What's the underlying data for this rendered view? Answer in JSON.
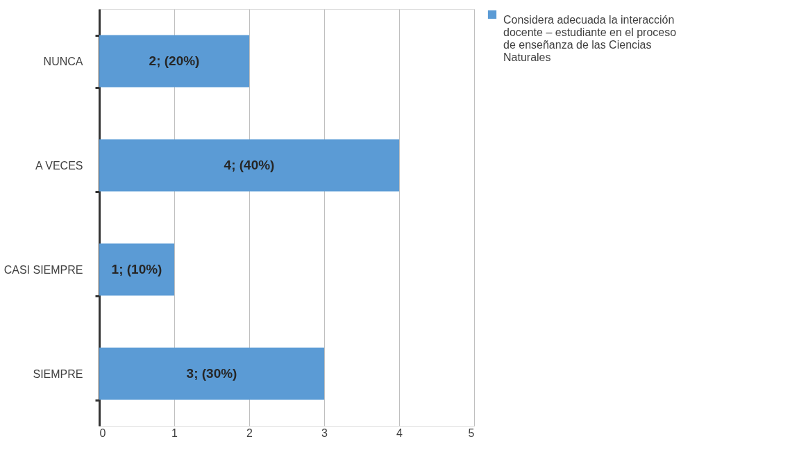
{
  "chart_data": {
    "type": "bar",
    "orientation": "horizontal",
    "categories": [
      "NUNCA",
      "A VECES",
      "CASI SIEMPRE",
      "SIEMPRE"
    ],
    "series": [
      {
        "name": "Considera adecuada la interacción docente – estudiante en el proceso de enseñanza de las Ciencias Naturales",
        "color": "#5b9bd5",
        "values": [
          2,
          4,
          1,
          3
        ],
        "value_labels": [
          "2; (20%)",
          "4; (40%)",
          "1; (10%)",
          "3; (30%)"
        ]
      }
    ],
    "xlim": [
      0,
      5
    ],
    "xticks": [
      0,
      1,
      2,
      3,
      4,
      5
    ],
    "grid": "x",
    "legend": "right"
  }
}
